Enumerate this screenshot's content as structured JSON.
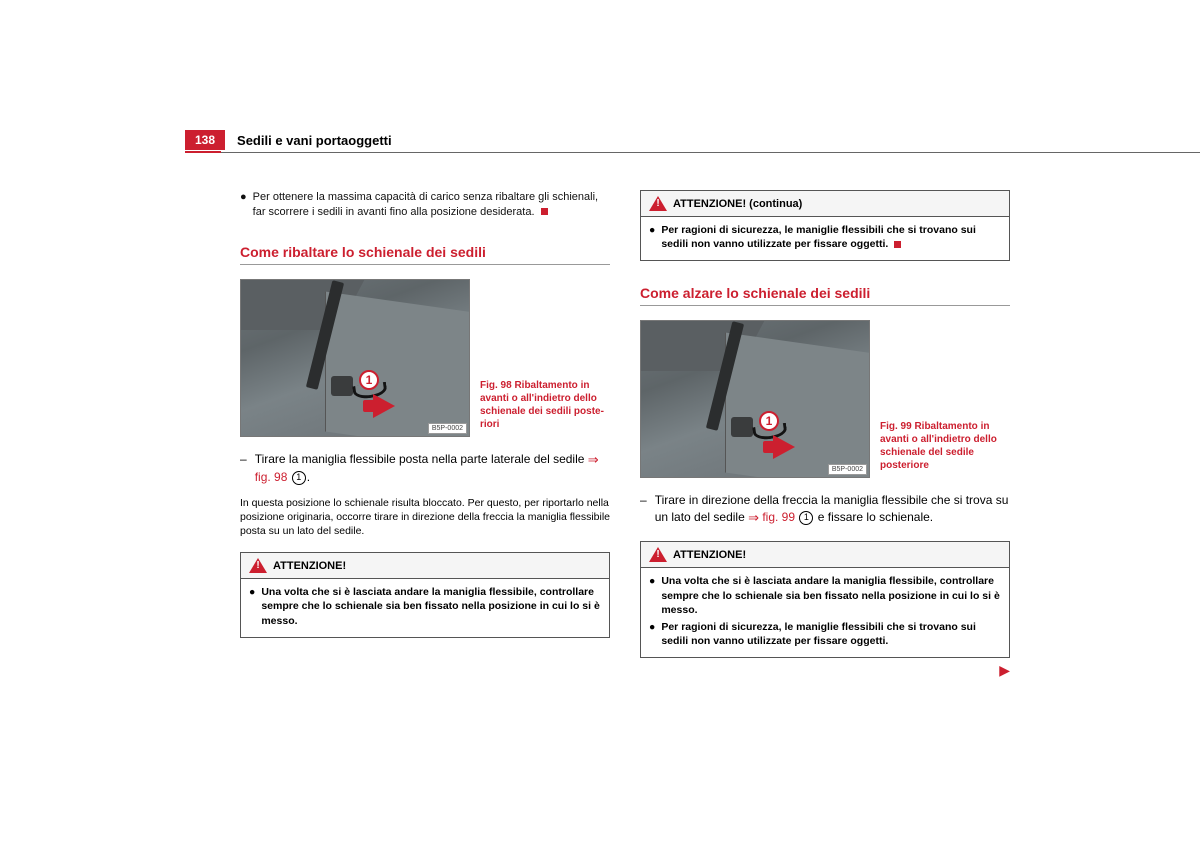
{
  "page_number": "138",
  "section_title": "Sedili e vani portaoggetti",
  "col1": {
    "intro_bullet": "Per ottenere la massima capacità di carico senza ribaltare gli schienali, far scorrere i sedili in avanti fino alla posizione desiderata.",
    "subheading": "Come ribaltare lo schienale dei sedili",
    "fig_caption": "Fig. 98   Ribaltamento in avanti o all'indietro dello schienale dei sedili poste­riori",
    "fig_code": "B5P-0002",
    "callout_number": "1",
    "step_text_a": "Tirare la maniglia flessibile posta nella parte laterale del sedile ",
    "step_fig_ref": "fig. 98",
    "step_circ": "1",
    "para": "In questa posizione lo schienale risulta bloccato. Per questo, per riportarlo nella posizione originaria, occorre tirare in direzione della freccia la maniglia flessibile posta su un lato del sedile.",
    "warn_title": "ATTENZIONE!",
    "warn_bullet1": "Una volta che si è lasciata andare la maniglia flessibile, controllare sempre che lo schienale sia ben fissato nella posizione in cui lo si è messo."
  },
  "col2": {
    "warn_cont_title": "ATTENZIONE! (continua)",
    "warn_cont_bullet": "Per ragioni di sicurezza, le maniglie flessibili che si trovano sui sedili non vanno utilizzate per fissare oggetti.",
    "subheading": "Come alzare lo schienale dei sedili",
    "fig_caption": "Fig. 99   Ribaltamento in avanti o all'indietro dello schienale del sedile posteriore",
    "fig_code": "B5P-0002",
    "callout_number": "1",
    "step_text_a": "Tirare in direzione della freccia la maniglia flessibile che si trova su un lato del sedile ",
    "step_fig_ref": "fig. 99",
    "step_circ": "1",
    "step_text_b": " e fissare lo schienale.",
    "warn_title": "ATTENZIONE!",
    "warn_bullet1": "Una volta che si è lasciata andare la maniglia flessibile, controllare sempre che lo schienale sia ben fissato nella posizione in cui lo si è messo.",
    "warn_bullet2": "Per ragioni di sicurezza, le maniglie flessibili che si trovano sui sedili non vanno utilizzate per fissare oggetti."
  },
  "colors": {
    "accent": "#cc1f2f",
    "rule": "#999",
    "text": "#111"
  }
}
